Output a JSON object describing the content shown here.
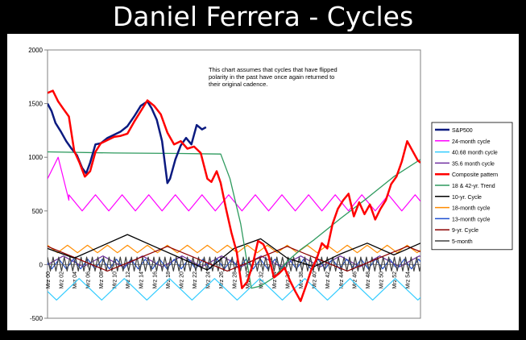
{
  "title": "Daniel Ferrera - Cycles",
  "annotation": "This chart assumes that cycles that have flipped polarity in the past have once again returned to their original cadence.",
  "chart_data": {
    "type": "line",
    "ylim": [
      -500,
      2000
    ],
    "yticks": [
      2000,
      1500,
      1000,
      500,
      0,
      -500
    ],
    "xlim": [
      2000,
      2028
    ],
    "xtick_labels": [
      "Mrz 00",
      "Mrz 02",
      "Mrz 04",
      "Mrz 06",
      "Mrz 08",
      "Mrz 10",
      "Mrz 12",
      "Mrz 14",
      "Mrz 16",
      "Mrz 18",
      "Mrz 20",
      "Mrz 22",
      "Mrz 24",
      "Mrz 26",
      "Mrz 28",
      "Mrz 30",
      "Mrz 32",
      "Mrz 34",
      "Mrz 36",
      "Mrz 38",
      "Mrz 40",
      "Mrz 42",
      "Mrz 44",
      "Mrz 46",
      "Mrz 48",
      "Mrz 50",
      "Mrz 52",
      "Mrz 54"
    ],
    "legend_position": "right",
    "series": [
      {
        "name": "S&P500",
        "color": "#0b1a80",
        "width": 2.5,
        "kind": "points",
        "x": [
          2000,
          2000.3,
          2000.6,
          2001,
          2001.4,
          2001.8,
          2002.2,
          2002.6,
          2002.9,
          2003.2,
          2003.6,
          2004,
          2004.5,
          2005,
          2005.5,
          2006,
          2006.5,
          2007,
          2007.5,
          2007.8,
          2008.2,
          2008.6,
          2009.0,
          2009.2,
          2009.6,
          2010,
          2010.4,
          2010.8,
          2011.2,
          2011.6,
          2011.9
        ],
        "y": [
          1500,
          1430,
          1320,
          1240,
          1150,
          1080,
          1020,
          900,
          850,
          950,
          1120,
          1130,
          1180,
          1210,
          1240,
          1290,
          1380,
          1480,
          1520,
          1460,
          1350,
          1150,
          760,
          800,
          980,
          1110,
          1180,
          1120,
          1300,
          1260,
          1280
        ]
      },
      {
        "name": "24-month cycle",
        "color": "#ff00ff",
        "width": 1.2,
        "kind": "triangle",
        "period": 2,
        "low": 500,
        "high": 650,
        "phase": 0,
        "extra_x": [
          2000,
          2000.8,
          2001.6
        ],
        "extra_y": [
          800,
          1000,
          600
        ]
      },
      {
        "name": "40.68 month cycle",
        "color": "#33ccff",
        "width": 1.2,
        "kind": "triangle",
        "period": 3.39,
        "low": -330,
        "high": -130,
        "phase": 0.3
      },
      {
        "name": "35.6 month cycle",
        "color": "#7030a0",
        "width": 1.2,
        "kind": "triangle",
        "period": 2.97,
        "low": -20,
        "high": 80,
        "phase": 0.6
      },
      {
        "name": "Composite pattern",
        "color": "#ff0000",
        "width": 2.5,
        "kind": "points",
        "x": [
          2000,
          2000.4,
          2000.8,
          2001.2,
          2001.6,
          2002,
          2002.4,
          2002.8,
          2003.2,
          2003.6,
          2004,
          2004.5,
          2005,
          2005.5,
          2006,
          2006.5,
          2007,
          2007.5,
          2008,
          2008.5,
          2009,
          2009.5,
          2010,
          2010.5,
          2011,
          2011.5,
          2012,
          2012.3,
          2012.7,
          2013,
          2013.4,
          2013.8,
          2014.2,
          2014.6,
          2015,
          2015.4,
          2015.8,
          2016.2,
          2016.6,
          2017,
          2017.4,
          2017.8,
          2018.2,
          2018.6,
          2019,
          2019.4,
          2019.8,
          2020.2,
          2020.6,
          2021,
          2021.4,
          2021.8,
          2022.2,
          2022.6,
          2023,
          2023.4,
          2023.8,
          2024.2,
          2024.6,
          2025,
          2025.4,
          2025.8,
          2026.2,
          2026.6,
          2027,
          2027.4,
          2027.8,
          2028
        ],
        "y": [
          1600,
          1620,
          1520,
          1450,
          1380,
          1060,
          950,
          820,
          870,
          1050,
          1130,
          1160,
          1190,
          1200,
          1220,
          1330,
          1430,
          1530,
          1480,
          1400,
          1230,
          1120,
          1150,
          1080,
          1100,
          1040,
          800,
          770,
          870,
          760,
          520,
          300,
          120,
          -220,
          -160,
          0,
          220,
          190,
          80,
          -120,
          -80,
          -30,
          -150,
          -250,
          -340,
          -200,
          -50,
          50,
          200,
          150,
          380,
          520,
          600,
          660,
          450,
          580,
          470,
          560,
          420,
          520,
          600,
          750,
          820,
          960,
          1150,
          1060,
          970,
          950
        ]
      },
      {
        "name": "18 & 42-yr. Trend",
        "color": "#2e9a5e",
        "width": 1.3,
        "kind": "points",
        "x": [
          2000,
          2005,
          2010,
          2013.0,
          2013.7,
          2014.5,
          2015.3,
          2016,
          2017,
          2018,
          2019,
          2020,
          2022,
          2024,
          2026,
          2028
        ],
        "y": [
          1050,
          1040,
          1035,
          1030,
          800,
          380,
          -220,
          -200,
          -120,
          30,
          140,
          230,
          430,
          620,
          820,
          980
        ]
      },
      {
        "name": "10-yr. Cycle",
        "color": "#000000",
        "width": 1.3,
        "kind": "points",
        "x": [
          2000,
          2002,
          2004,
          2006,
          2008,
          2010,
          2012,
          2014,
          2016,
          2018,
          2020,
          2022,
          2024,
          2026,
          2028
        ],
        "y": [
          150,
          60,
          170,
          280,
          170,
          60,
          -50,
          150,
          240,
          60,
          -20,
          100,
          200,
          90,
          200
        ]
      },
      {
        "name": "18-month cycle",
        "color": "#ff8c00",
        "width": 1.2,
        "kind": "triangle",
        "period": 1.5,
        "low": 110,
        "high": 180,
        "phase": 0
      },
      {
        "name": "13-month cycle",
        "color": "#1f4fd0",
        "width": 1.2,
        "kind": "triangle",
        "period": 1.08,
        "low": -40,
        "high": 50,
        "phase": 0.2
      },
      {
        "name": "9-yr. Cycle",
        "color": "#8b0000",
        "width": 1.2,
        "kind": "points",
        "x": [
          2000,
          2004.5,
          2009,
          2013.5,
          2018,
          2022.5,
          2027,
          2028
        ],
        "y": [
          170,
          -60,
          170,
          -60,
          170,
          -60,
          170,
          120
        ]
      },
      {
        "name": "5-month",
        "color": "#404040",
        "width": 1.2,
        "kind": "triangle",
        "period": 0.42,
        "low": -60,
        "high": 70,
        "phase": 0
      }
    ]
  }
}
